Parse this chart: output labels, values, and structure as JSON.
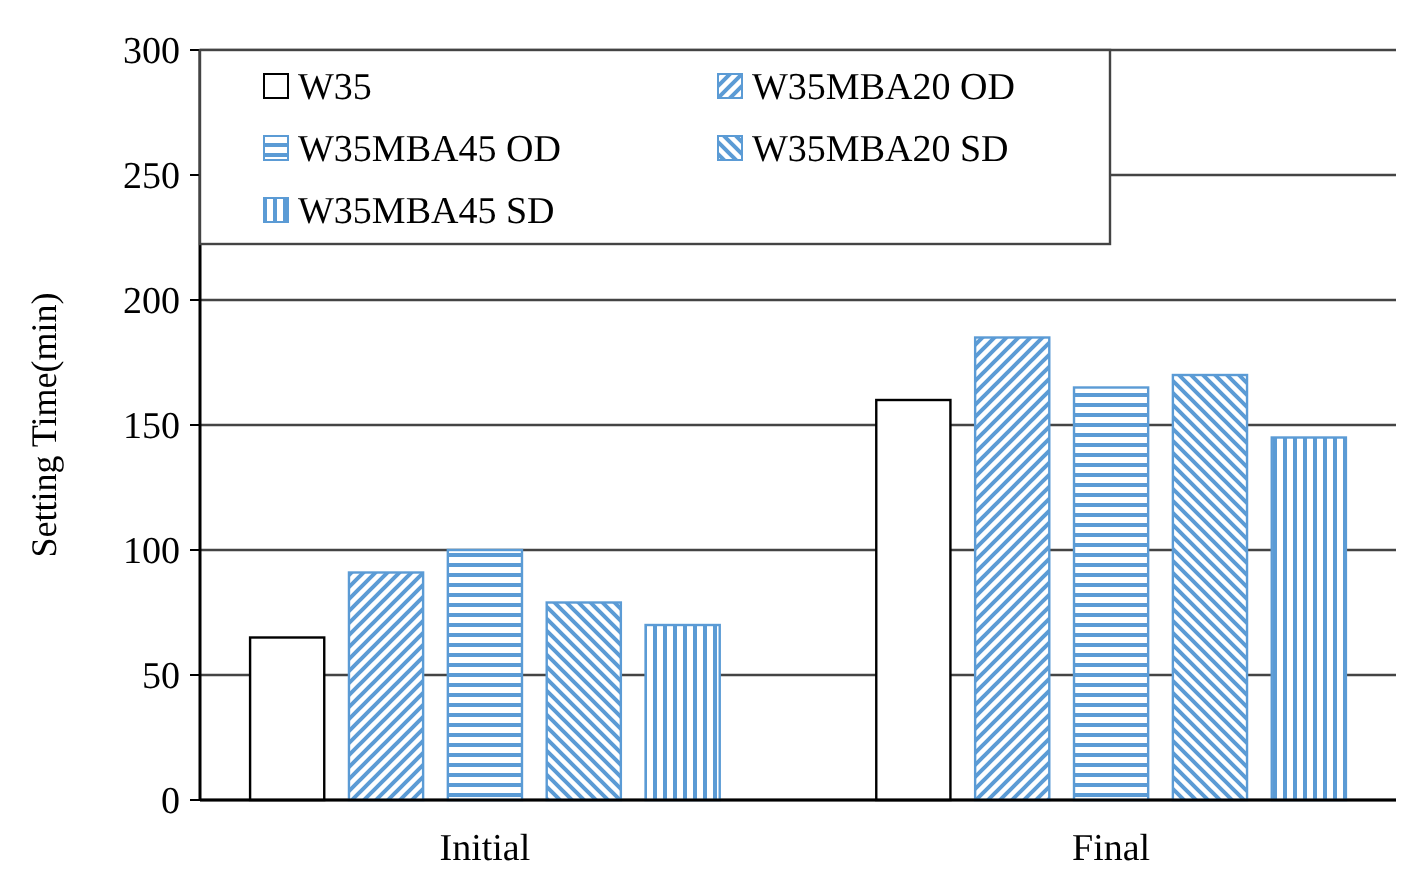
{
  "chart_data": {
    "type": "bar",
    "ylabel": "Setting Time(min)",
    "categories": [
      "Initial",
      "Final"
    ],
    "series": [
      {
        "name": "W35",
        "color": "#ffffff",
        "values": [
          65,
          160
        ]
      },
      {
        "name": "W35MBA20 OD",
        "color": "#5b9bd5",
        "values": [
          91,
          185
        ]
      },
      {
        "name": "W35MBA45 OD",
        "color": "#5b9bd5",
        "values": [
          100,
          165
        ]
      },
      {
        "name": "W35MBA20 SD",
        "color": "#5b9bd5",
        "values": [
          79,
          170
        ]
      },
      {
        "name": "W35MBA45 SD",
        "color": "#5b9bd5",
        "values": [
          70,
          145
        ]
      }
    ],
    "ylim": [
      0,
      300
    ],
    "yticks": [
      0,
      50,
      100,
      150,
      200,
      250,
      300
    ],
    "grid": "y",
    "legend": "top left"
  }
}
